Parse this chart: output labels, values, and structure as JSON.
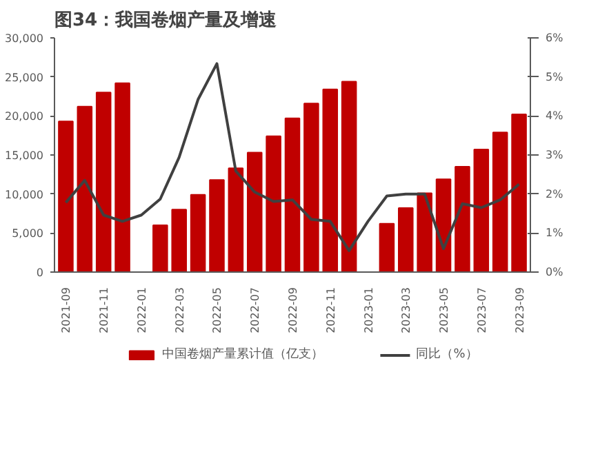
{
  "chart_data": {
    "type": "bar",
    "title": "图34：我国卷烟产量及增速",
    "categories": [
      "2021-09",
      null,
      "2021-11",
      null,
      "2022-01",
      null,
      "2022-03",
      null,
      "2022-05",
      null,
      "2022-07",
      null,
      "2022-09",
      null,
      "2022-11",
      null,
      "2023-01",
      null,
      "2023-03",
      null,
      "2023-05",
      null,
      "2023-07",
      null,
      "2023-09"
    ],
    "series": [
      {
        "name": "中国卷烟产量累计值（亿支）",
        "color": "#c00000",
        "values": [
          19300,
          21200,
          23000,
          24200,
          null,
          6000,
          8000,
          9900,
          11800,
          13300,
          15300,
          17400,
          19700,
          21600,
          23400,
          24400,
          null,
          6200,
          8200,
          10100,
          11900,
          13500,
          15700,
          17900,
          20200
        ]
      },
      {
        "name": "同比（%）",
        "color": "#404040",
        "type": "line",
        "axis": "y2",
        "values": [
          1.78,
          2.35,
          1.46,
          1.3,
          1.46,
          1.87,
          2.94,
          4.42,
          5.34,
          2.59,
          2.05,
          1.81,
          1.85,
          1.35,
          1.3,
          0.55,
          1.3,
          1.95,
          2.0,
          2.0,
          0.6,
          1.75,
          1.65,
          1.85,
          2.25
        ]
      }
    ],
    "ylim": [
      0,
      30000
    ],
    "yticks": [
      {
        "value": 0,
        "label": "0"
      },
      {
        "value": 5000,
        "label": "5,000"
      },
      {
        "value": 10000,
        "label": "10,000"
      },
      {
        "value": 15000,
        "label": "15,000"
      },
      {
        "value": 20000,
        "label": "20,000"
      },
      {
        "value": 25000,
        "label": "25,000"
      },
      {
        "value": 30000,
        "label": "30,000"
      }
    ],
    "y2lim": [
      0,
      6
    ],
    "y2ticks": [
      {
        "value": 0,
        "label": "0%"
      },
      {
        "value": 1,
        "label": "1%"
      },
      {
        "value": 2,
        "label": "2%"
      },
      {
        "value": 3,
        "label": "3%"
      },
      {
        "value": 4,
        "label": "4%"
      },
      {
        "value": 5,
        "label": "5%"
      },
      {
        "value": 6,
        "label": "6%"
      }
    ],
    "grid": false,
    "legend": "bottom"
  }
}
